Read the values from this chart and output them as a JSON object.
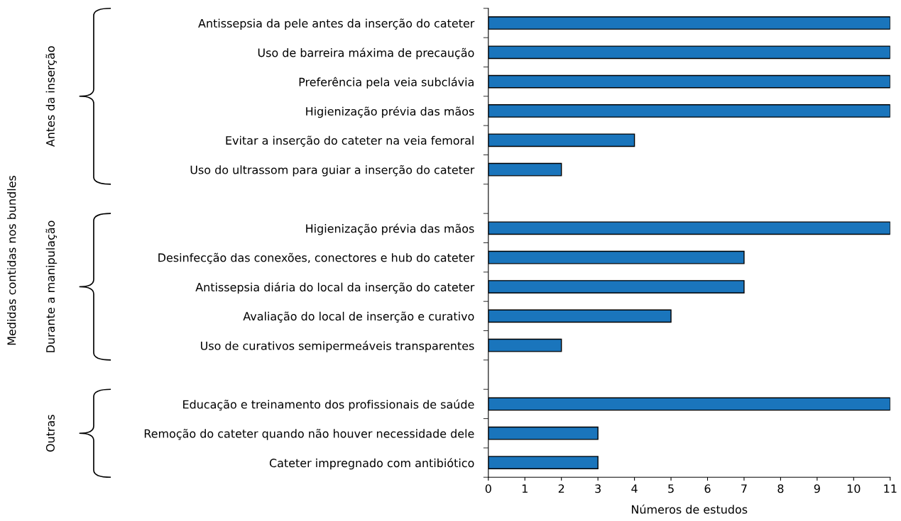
{
  "chart_data": {
    "type": "bar",
    "orientation": "horizontal",
    "categories": [
      "Antissepsia da pele antes da inserção do cateter",
      "Uso de barreira máxima de precaução",
      "Preferência pela veia subclávia",
      "Higienização prévia das mãos",
      "Evitar a inserção do cateter na veia femoral",
      "Uso do ultrassom para guiar a inserção do cateter",
      null,
      "Higienização prévia das mãos",
      "Desinfecção das conexões, conectores e hub do cateter",
      "Antissepsia diária do local da inserção do cateter",
      "Avaliação do local de inserção e curativo",
      "Uso de curativos semipermeáveis transparentes",
      null,
      "Educação e treinamento dos profissionais de saúde",
      "Remoção do cateter quando não houver necessidade dele",
      "Cateter impregnado com antibiótico"
    ],
    "values": [
      11,
      11,
      11,
      11,
      4,
      2,
      null,
      11,
      7,
      7,
      5,
      2,
      null,
      11,
      3,
      3
    ],
    "color": "#1a75bc",
    "xlim": [
      0,
      11
    ],
    "xticks": [
      0,
      1,
      2,
      3,
      4,
      5,
      6,
      7,
      8,
      9,
      10,
      11
    ],
    "xlabel": "Números de estudos",
    "annotations": [
      "Antes da inserção",
      "Durante a manipulação",
      "Outras",
      "Medidas contidas nos bundles"
    ],
    "grid": false,
    "legend": false
  }
}
